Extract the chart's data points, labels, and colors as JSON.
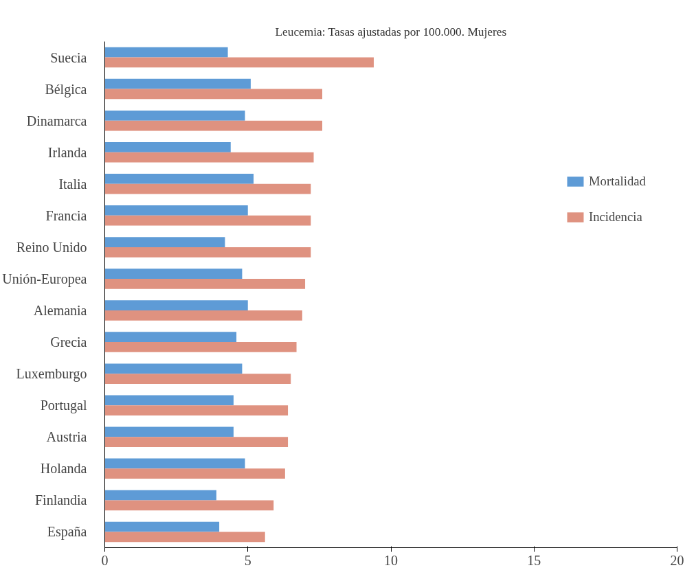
{
  "chart_data": {
    "type": "bar",
    "orientation": "horizontal",
    "title": "Leucemia: Tasas ajustadas por 100.000. Mujeres",
    "categories": [
      "Suecia",
      "Bélgica",
      "Dinamarca",
      "Irlanda",
      "Italia",
      "Francia",
      "Reino Unido",
      "Unión-Europea",
      "Alemania",
      "Grecia",
      "Luxemburgo",
      "Portugal",
      "Austria",
      "Holanda",
      "Finlandia",
      "España"
    ],
    "series": [
      {
        "name": "Mortalidad",
        "color": "#5e9bd6",
        "values": [
          4.3,
          5.1,
          4.9,
          4.4,
          5.2,
          5.0,
          4.2,
          4.8,
          5.0,
          4.6,
          4.8,
          4.5,
          4.5,
          4.9,
          3.9,
          4.0
        ]
      },
      {
        "name": "Incidencia",
        "color": "#df9280",
        "values": [
          9.4,
          7.6,
          7.6,
          7.3,
          7.2,
          7.2,
          7.2,
          7.0,
          6.9,
          6.7,
          6.5,
          6.4,
          6.4,
          6.3,
          5.9,
          5.6
        ]
      }
    ],
    "xlim": [
      0,
      20
    ],
    "xticks": [
      0,
      5,
      10,
      15,
      20
    ],
    "grid": false,
    "legend": "right"
  }
}
